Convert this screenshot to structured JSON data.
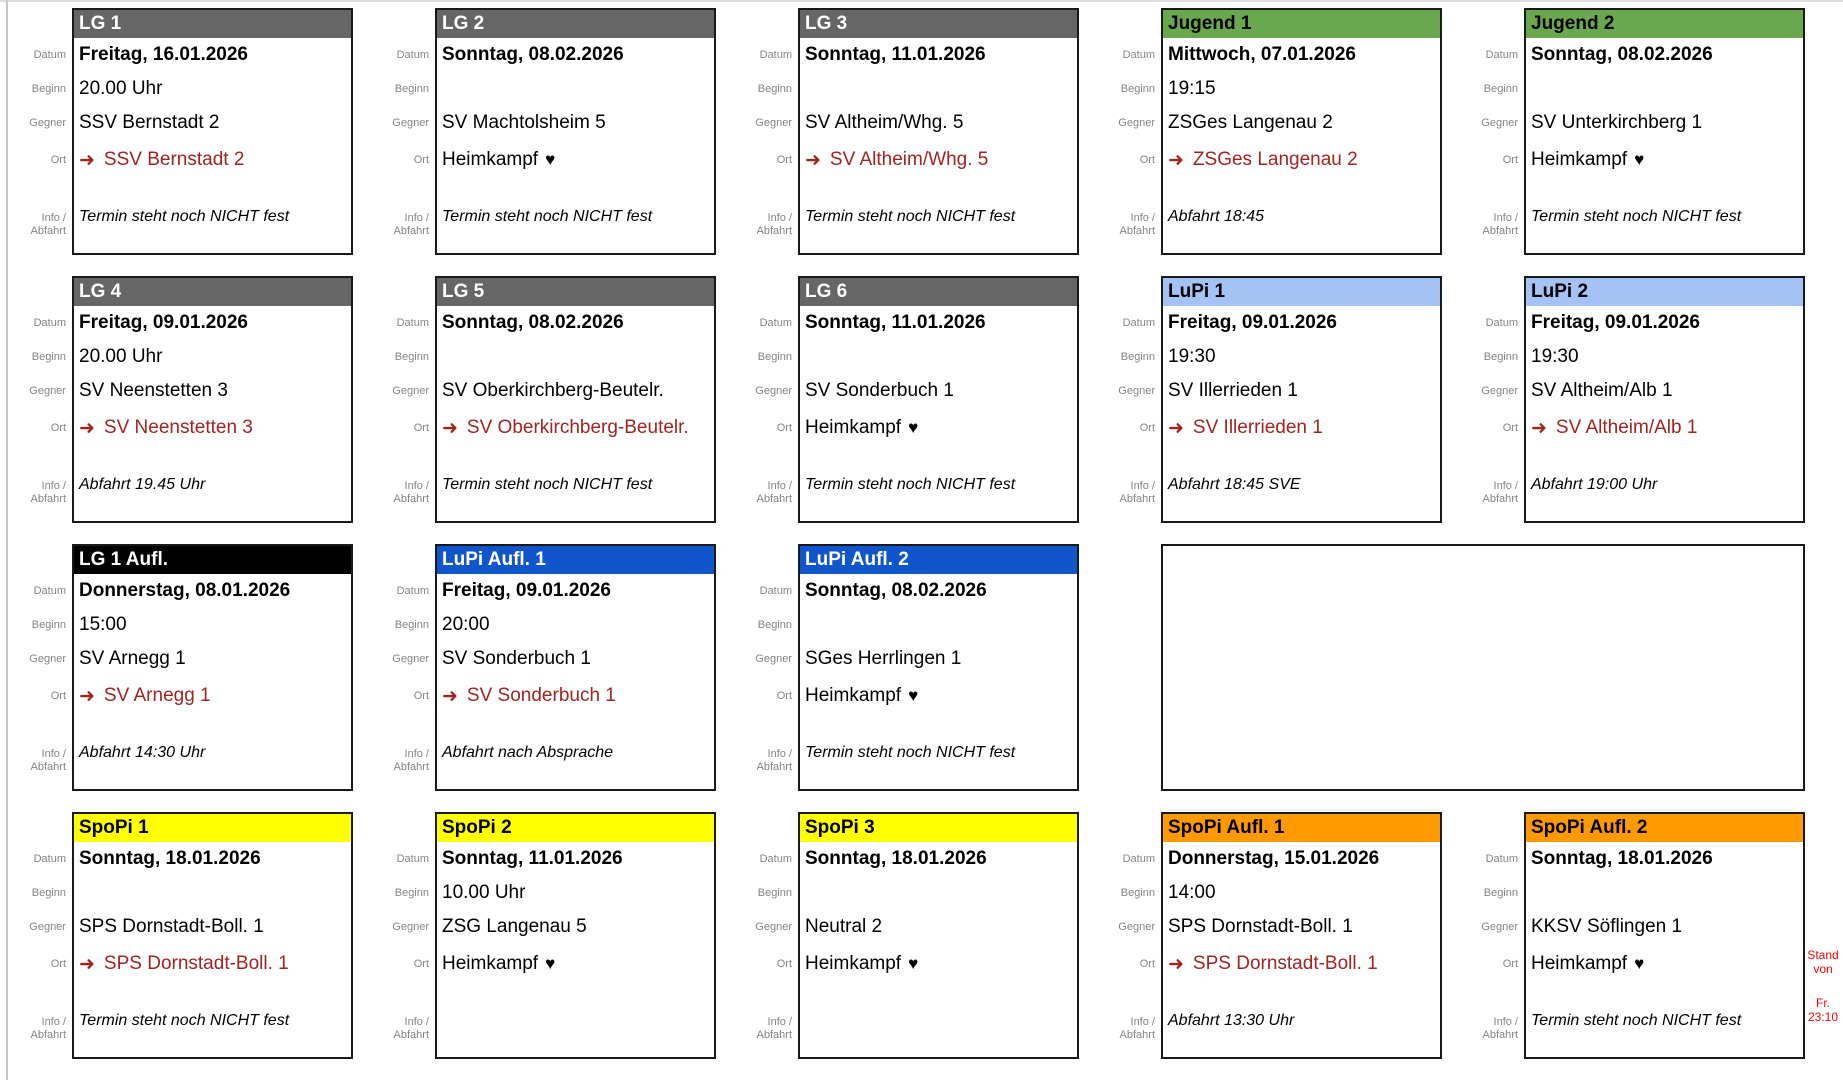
{
  "labels": {
    "datum": "Datum",
    "beginn": "Beginn",
    "gegner": "Gegner",
    "ort": "Ort",
    "info_line1": "Info /",
    "info_line2": "Abfahrt"
  },
  "icons": {
    "away_arrow": "➜",
    "home_heart": "♥"
  },
  "colors": {
    "away_text": "#a02420",
    "label_gray": "#848484",
    "stand_red": "#ff0000",
    "card_border": "#1a1a1a",
    "headers": {
      "gray": {
        "bg": "#666666",
        "fg": "#ffffff"
      },
      "green": {
        "bg": "#6aa84f",
        "fg": "#000000"
      },
      "lightblue": {
        "bg": "#a4c2f4",
        "fg": "#000000"
      },
      "blue": {
        "bg": "#1155cc",
        "fg": "#ffffff"
      },
      "black": {
        "bg": "#000000",
        "fg": "#ffffff"
      },
      "yellow": {
        "bg": "#ffff00",
        "fg": "#000000"
      },
      "orange": {
        "bg": "#ff9900",
        "fg": "#000000"
      }
    }
  },
  "cards": [
    {
      "row": 1,
      "col": 1,
      "color": "gray",
      "title": "LG 1",
      "datum": "Freitag, 16.01.2026",
      "beginn": "20.00 Uhr",
      "gegner": "SSV Bernstadt 2",
      "ort_type": "away",
      "ort": "SSV Bernstadt 2",
      "info": "Termin steht noch NICHT fest"
    },
    {
      "row": 1,
      "col": 2,
      "color": "gray",
      "title": "LG 2",
      "datum": "Sonntag, 08.02.2026",
      "beginn": "",
      "gegner": "SV Machtolsheim 5",
      "ort_type": "home",
      "ort": "Heimkampf",
      "info": "Termin steht noch NICHT fest"
    },
    {
      "row": 1,
      "col": 3,
      "color": "gray",
      "title": "LG 3",
      "datum": "Sonntag, 11.01.2026",
      "beginn": "",
      "gegner": "SV Altheim/Whg. 5",
      "ort_type": "away",
      "ort": "SV Altheim/Whg. 5",
      "info": "Termin steht noch NICHT fest"
    },
    {
      "row": 1,
      "col": 4,
      "color": "green",
      "title": "Jugend 1",
      "datum": "Mittwoch, 07.01.2026",
      "beginn": "19:15",
      "gegner": "ZSGes Langenau 2",
      "ort_type": "away",
      "ort": "ZSGes Langenau 2",
      "info": "Abfahrt 18:45"
    },
    {
      "row": 1,
      "col": 5,
      "color": "green",
      "title": "Jugend 2",
      "datum": "Sonntag, 08.02.2026",
      "beginn": "",
      "gegner": "SV Unterkirchberg 1",
      "ort_type": "home",
      "ort": "Heimkampf",
      "info": "Termin steht noch NICHT fest"
    },
    {
      "row": 2,
      "col": 1,
      "color": "gray",
      "title": "LG 4",
      "datum": "Freitag, 09.01.2026",
      "beginn": "20.00 Uhr",
      "gegner": "SV Neenstetten 3",
      "ort_type": "away",
      "ort": "SV Neenstetten 3",
      "info": "Abfahrt 19.45 Uhr"
    },
    {
      "row": 2,
      "col": 2,
      "color": "gray",
      "title": "LG 5",
      "datum": "Sonntag, 08.02.2026",
      "beginn": "",
      "gegner": "SV Oberkirchberg-Beutelr.",
      "ort_type": "away",
      "ort": "SV Oberkirchberg-Beutelr.",
      "info": "Termin steht noch NICHT fest"
    },
    {
      "row": 2,
      "col": 3,
      "color": "gray",
      "title": "LG 6",
      "datum": "Sonntag, 11.01.2026",
      "beginn": "",
      "gegner": "SV Sonderbuch 1",
      "ort_type": "home",
      "ort": "Heimkampf",
      "info": "Termin steht noch NICHT fest"
    },
    {
      "row": 2,
      "col": 4,
      "color": "lightblue",
      "title": "LuPi 1",
      "datum": "Freitag, 09.01.2026",
      "beginn": "19:30",
      "gegner": "SV Illerrieden 1",
      "ort_type": "away",
      "ort": "SV Illerrieden 1",
      "info": "Abfahrt 18:45 SVE"
    },
    {
      "row": 2,
      "col": 5,
      "color": "lightblue",
      "title": "LuPi 2",
      "datum": "Freitag, 09.01.2026",
      "beginn": "19:30",
      "gegner": "SV Altheim/Alb 1",
      "ort_type": "away",
      "ort": "SV Altheim/Alb 1",
      "info": "Abfahrt 19:00 Uhr"
    },
    {
      "row": 3,
      "col": 1,
      "color": "black",
      "title": "LG 1 Aufl.",
      "datum": "Donnerstag, 08.01.2026",
      "beginn": "15:00",
      "gegner": "SV Arnegg 1",
      "ort_type": "away",
      "ort": "SV Arnegg 1",
      "info": "Abfahrt 14:30 Uhr"
    },
    {
      "row": 3,
      "col": 2,
      "color": "blue",
      "title": "LuPi Aufl. 1",
      "datum": "Freitag, 09.01.2026",
      "beginn": "20:00",
      "gegner": "SV Sonderbuch 1",
      "ort_type": "away",
      "ort": "SV Sonderbuch 1",
      "info": "Abfahrt nach Absprache"
    },
    {
      "row": 3,
      "col": 3,
      "color": "blue",
      "title": "LuPi Aufl. 2",
      "datum": "Sonntag, 08.02.2026",
      "beginn": "",
      "gegner": "SGes Herrlingen 1",
      "ort_type": "home",
      "ort": "Heimkampf",
      "info": "Termin steht noch NICHT fest"
    },
    {
      "row": 4,
      "col": 1,
      "color": "yellow",
      "title": "SpoPi 1",
      "datum": "Sonntag, 18.01.2026",
      "beginn": "",
      "gegner": "SPS Dornstadt-Boll. 1",
      "ort_type": "away",
      "ort": "SPS Dornstadt-Boll. 1",
      "info": "Termin steht noch NICHT fest"
    },
    {
      "row": 4,
      "col": 2,
      "color": "yellow",
      "title": "SpoPi 2",
      "datum": "Sonntag, 11.01.2026",
      "beginn": "10.00 Uhr",
      "gegner": "ZSG Langenau 5",
      "ort_type": "home",
      "ort": "Heimkampf",
      "info": ""
    },
    {
      "row": 4,
      "col": 3,
      "color": "yellow",
      "title": "SpoPi 3",
      "datum": "Sonntag, 18.01.2026",
      "beginn": "",
      "gegner": "Neutral 2",
      "ort_type": "home",
      "ort": "Heimkampf",
      "info": ""
    },
    {
      "row": 4,
      "col": 4,
      "color": "orange",
      "title": "SpoPi Aufl. 1",
      "datum": "Donnerstag, 15.01.2026",
      "beginn": "14:00",
      "gegner": "SPS Dornstadt-Boll. 1",
      "ort_type": "away",
      "ort": "SPS Dornstadt-Boll. 1",
      "info": "Abfahrt 13:30 Uhr"
    },
    {
      "row": 4,
      "col": 5,
      "color": "orange",
      "title": "SpoPi Aufl. 2",
      "datum": "Sonntag, 18.01.2026",
      "beginn": "",
      "gegner": "KKSV Söflingen 1",
      "ort_type": "home",
      "ort": "Heimkampf",
      "info": "Termin steht noch NICHT fest"
    }
  ],
  "empty_cell": {
    "row": 3,
    "col": 4,
    "span": 2
  },
  "stand_note": {
    "line1": "Stand von",
    "line2": "Fr. 23:10"
  }
}
